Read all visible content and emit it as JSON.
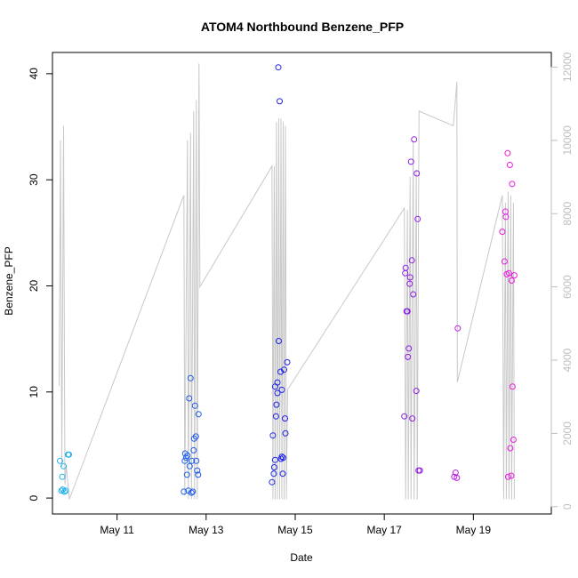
{
  "chart_data": {
    "type": "scatter",
    "title": "ATOM4 Northbound Benzene_PFP",
    "xlabel": "Date",
    "ylabel": "Benzene_PFP",
    "xlim": [
      9.55,
      20.75
    ],
    "ylim": [
      -1.5,
      42.0
    ],
    "ylim_right": [
      -200,
      12400
    ],
    "grid": false,
    "x_ticks": [
      {
        "value": 11,
        "label": "May 11"
      },
      {
        "value": 13,
        "label": "May 13"
      },
      {
        "value": 15,
        "label": "May 15"
      },
      {
        "value": 17,
        "label": "May 17"
      },
      {
        "value": 19,
        "label": "May 19"
      }
    ],
    "y_ticks": [
      {
        "value": 0,
        "label": "0"
      },
      {
        "value": 10,
        "label": "10"
      },
      {
        "value": 20,
        "label": "20"
      },
      {
        "value": 30,
        "label": "30"
      },
      {
        "value": 40,
        "label": "40"
      }
    ],
    "y_ticks_right": [
      {
        "value": 0,
        "label": "0"
      },
      {
        "value": 2000,
        "label": "2000"
      },
      {
        "value": 4000,
        "label": "4000"
      },
      {
        "value": 6000,
        "label": "6000"
      },
      {
        "value": 8000,
        "label": "8000"
      },
      {
        "value": 10000,
        "label": "10000"
      },
      {
        "value": 12000,
        "label": "12000"
      }
    ],
    "color_start": "#1fb3ec",
    "color_end": "#ee1ee0",
    "line_color": "#c8c8c8",
    "points": [
      {
        "x": 9.72,
        "y": 3.5
      },
      {
        "x": 9.75,
        "y": 0.7
      },
      {
        "x": 9.77,
        "y": 2.0
      },
      {
        "x": 9.78,
        "y": 0.8
      },
      {
        "x": 9.8,
        "y": 3.0
      },
      {
        "x": 9.82,
        "y": 0.6
      },
      {
        "x": 9.85,
        "y": 0.7
      },
      {
        "x": 9.9,
        "y": 4.1
      },
      {
        "x": 9.92,
        "y": 4.1
      },
      {
        "x": 12.5,
        "y": 0.6
      },
      {
        "x": 12.52,
        "y": 3.5
      },
      {
        "x": 12.53,
        "y": 4.2
      },
      {
        "x": 12.55,
        "y": 3.8
      },
      {
        "x": 12.57,
        "y": 2.2
      },
      {
        "x": 12.58,
        "y": 4.0
      },
      {
        "x": 12.6,
        "y": 0.7
      },
      {
        "x": 12.62,
        "y": 9.4
      },
      {
        "x": 12.63,
        "y": 3.0
      },
      {
        "x": 12.65,
        "y": 11.3
      },
      {
        "x": 12.67,
        "y": 0.5
      },
      {
        "x": 12.68,
        "y": 3.5
      },
      {
        "x": 12.7,
        "y": 0.6
      },
      {
        "x": 12.72,
        "y": 4.5
      },
      {
        "x": 12.73,
        "y": 5.6
      },
      {
        "x": 12.75,
        "y": 8.7
      },
      {
        "x": 12.77,
        "y": 5.8
      },
      {
        "x": 12.78,
        "y": 3.5
      },
      {
        "x": 12.8,
        "y": 2.6
      },
      {
        "x": 12.82,
        "y": 2.2
      },
      {
        "x": 12.83,
        "y": 7.9
      },
      {
        "x": 14.48,
        "y": 1.5
      },
      {
        "x": 14.5,
        "y": 5.9
      },
      {
        "x": 14.52,
        "y": 2.3
      },
      {
        "x": 14.53,
        "y": 2.9
      },
      {
        "x": 14.55,
        "y": 3.6
      },
      {
        "x": 14.57,
        "y": 7.7
      },
      {
        "x": 14.58,
        "y": 8.8
      },
      {
        "x": 14.6,
        "y": 10.9
      },
      {
        "x": 14.62,
        "y": 40.6
      },
      {
        "x": 14.63,
        "y": 14.8
      },
      {
        "x": 14.65,
        "y": 37.4
      },
      {
        "x": 14.67,
        "y": 11.9
      },
      {
        "x": 14.68,
        "y": 3.7
      },
      {
        "x": 14.7,
        "y": 3.9
      },
      {
        "x": 14.72,
        "y": 2.3
      },
      {
        "x": 14.73,
        "y": 3.8
      },
      {
        "x": 14.75,
        "y": 12.1
      },
      {
        "x": 14.77,
        "y": 7.5
      },
      {
        "x": 14.78,
        "y": 6.1
      },
      {
        "x": 14.82,
        "y": 12.8
      },
      {
        "x": 14.55,
        "y": 10.5
      },
      {
        "x": 14.6,
        "y": 9.9
      },
      {
        "x": 14.7,
        "y": 10.2
      },
      {
        "x": 17.45,
        "y": 7.7
      },
      {
        "x": 17.47,
        "y": 21.2
      },
      {
        "x": 17.48,
        "y": 21.7
      },
      {
        "x": 17.5,
        "y": 17.6
      },
      {
        "x": 17.52,
        "y": 17.6
      },
      {
        "x": 17.53,
        "y": 13.3
      },
      {
        "x": 17.55,
        "y": 14.1
      },
      {
        "x": 17.57,
        "y": 20.2
      },
      {
        "x": 17.58,
        "y": 20.8
      },
      {
        "x": 17.6,
        "y": 31.7
      },
      {
        "x": 17.62,
        "y": 22.4
      },
      {
        "x": 17.63,
        "y": 7.5
      },
      {
        "x": 17.65,
        "y": 19.2
      },
      {
        "x": 17.67,
        "y": 33.8
      },
      {
        "x": 17.72,
        "y": 10.1
      },
      {
        "x": 17.73,
        "y": 30.6
      },
      {
        "x": 17.75,
        "y": 26.3
      },
      {
        "x": 17.77,
        "y": 2.6
      },
      {
        "x": 17.8,
        "y": 2.6
      },
      {
        "x": 18.57,
        "y": 2.0
      },
      {
        "x": 18.6,
        "y": 2.4
      },
      {
        "x": 18.63,
        "y": 1.9
      },
      {
        "x": 18.65,
        "y": 16.0
      },
      {
        "x": 19.65,
        "y": 25.1
      },
      {
        "x": 19.7,
        "y": 22.3
      },
      {
        "x": 19.72,
        "y": 27.0
      },
      {
        "x": 19.73,
        "y": 26.5
      },
      {
        "x": 19.75,
        "y": 21.1
      },
      {
        "x": 19.77,
        "y": 32.5
      },
      {
        "x": 19.78,
        "y": 2.0
      },
      {
        "x": 19.8,
        "y": 21.2
      },
      {
        "x": 19.82,
        "y": 31.4
      },
      {
        "x": 19.83,
        "y": 4.7
      },
      {
        "x": 19.85,
        "y": 2.1
      },
      {
        "x": 19.86,
        "y": 20.5
      },
      {
        "x": 19.87,
        "y": 29.6
      },
      {
        "x": 19.88,
        "y": 10.5
      },
      {
        "x": 19.9,
        "y": 5.5
      },
      {
        "x": 19.92,
        "y": 21.0
      }
    ],
    "line": [
      {
        "x": 9.7,
        "y": 3300
      },
      {
        "x": 9.73,
        "y": 10000
      },
      {
        "x": 9.76,
        "y": 1100
      },
      {
        "x": 9.8,
        "y": 10400
      },
      {
        "x": 9.83,
        "y": 600
      },
      {
        "x": 9.86,
        "y": 1100
      },
      {
        "x": 9.93,
        "y": 200
      },
      {
        "x": 12.5,
        "y": 8500
      },
      {
        "x": 12.52,
        "y": 300
      },
      {
        "x": 12.58,
        "y": 10000
      },
      {
        "x": 12.6,
        "y": 200
      },
      {
        "x": 12.65,
        "y": 10200
      },
      {
        "x": 12.67,
        "y": 200
      },
      {
        "x": 12.72,
        "y": 10800
      },
      {
        "x": 12.74,
        "y": 200
      },
      {
        "x": 12.78,
        "y": 11100
      },
      {
        "x": 12.8,
        "y": 200
      },
      {
        "x": 12.84,
        "y": 12100
      },
      {
        "x": 12.86,
        "y": 6000
      },
      {
        "x": 14.48,
        "y": 9300
      },
      {
        "x": 14.5,
        "y": 200
      },
      {
        "x": 14.53,
        "y": 9300
      },
      {
        "x": 14.55,
        "y": 200
      },
      {
        "x": 14.58,
        "y": 10500
      },
      {
        "x": 14.6,
        "y": 200
      },
      {
        "x": 14.63,
        "y": 10600
      },
      {
        "x": 14.65,
        "y": 200
      },
      {
        "x": 14.68,
        "y": 10600
      },
      {
        "x": 14.7,
        "y": 200
      },
      {
        "x": 14.73,
        "y": 10500
      },
      {
        "x": 14.75,
        "y": 200
      },
      {
        "x": 14.78,
        "y": 10400
      },
      {
        "x": 14.8,
        "y": 200
      },
      {
        "x": 14.83,
        "y": 3200
      },
      {
        "x": 17.45,
        "y": 8150
      },
      {
        "x": 17.48,
        "y": 200
      },
      {
        "x": 17.52,
        "y": 8100
      },
      {
        "x": 17.54,
        "y": 200
      },
      {
        "x": 17.58,
        "y": 9000
      },
      {
        "x": 17.6,
        "y": 200
      },
      {
        "x": 17.65,
        "y": 10000
      },
      {
        "x": 17.67,
        "y": 200
      },
      {
        "x": 17.72,
        "y": 9200
      },
      {
        "x": 17.74,
        "y": 200
      },
      {
        "x": 17.78,
        "y": 10800
      },
      {
        "x": 18.55,
        "y": 10400
      },
      {
        "x": 18.63,
        "y": 11600
      },
      {
        "x": 18.64,
        "y": 3400
      },
      {
        "x": 19.65,
        "y": 8500
      },
      {
        "x": 19.68,
        "y": 200
      },
      {
        "x": 19.72,
        "y": 8300
      },
      {
        "x": 19.74,
        "y": 200
      },
      {
        "x": 19.78,
        "y": 8600
      },
      {
        "x": 19.8,
        "y": 200
      },
      {
        "x": 19.84,
        "y": 8500
      },
      {
        "x": 19.86,
        "y": 200
      },
      {
        "x": 19.9,
        "y": 8300
      },
      {
        "x": 19.92,
        "y": 200
      }
    ]
  }
}
